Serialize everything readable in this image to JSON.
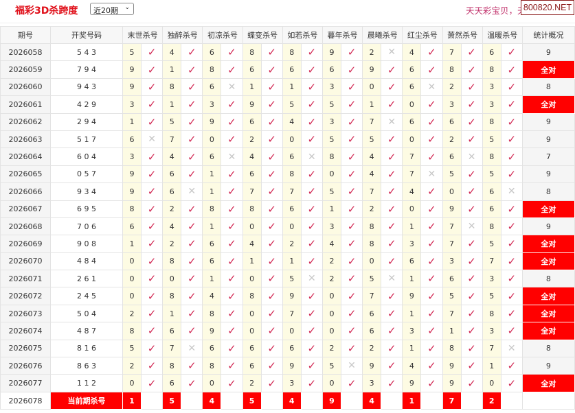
{
  "header": {
    "title": "福彩3D杀跨度",
    "period_select": "近20期",
    "slogan": "天天彩宝贝，天",
    "brand": "800820.NET"
  },
  "columns": {
    "issue": "期号",
    "draw": "开奖号码",
    "experts": [
      "末世杀号",
      "独醉杀号",
      "初凉杀号",
      "蝶变杀号",
      "如若杀号",
      "暮年杀号",
      "晨曦杀号",
      "红尘杀号",
      "萧然杀号",
      "温暖杀号"
    ],
    "stats": "统计概况"
  },
  "colors": {
    "accent": "#ff0000",
    "check": "#d22a55",
    "cross": "#c8c8c8",
    "number_bg": "#fdfbe3"
  },
  "rows": [
    {
      "issue": "2026058",
      "draw": "5 4 3",
      "kills": [
        5,
        4,
        6,
        8,
        8,
        9,
        2,
        4,
        7,
        6
      ],
      "hits": [
        1,
        1,
        1,
        1,
        1,
        1,
        0,
        1,
        1,
        1
      ],
      "stat": "9"
    },
    {
      "issue": "2026059",
      "draw": "7 9 4",
      "kills": [
        9,
        1,
        8,
        6,
        6,
        6,
        9,
        6,
        8,
        8
      ],
      "hits": [
        1,
        1,
        1,
        1,
        1,
        1,
        1,
        1,
        1,
        1
      ],
      "stat": "全对"
    },
    {
      "issue": "2026060",
      "draw": "9 4 3",
      "kills": [
        9,
        8,
        6,
        1,
        1,
        3,
        0,
        6,
        2,
        3
      ],
      "hits": [
        1,
        1,
        0,
        1,
        1,
        1,
        1,
        0,
        1,
        1
      ],
      "stat": "8"
    },
    {
      "issue": "2026061",
      "draw": "4 2 9",
      "kills": [
        3,
        1,
        3,
        9,
        5,
        5,
        1,
        0,
        3,
        3
      ],
      "hits": [
        1,
        1,
        1,
        1,
        1,
        1,
        1,
        1,
        1,
        1
      ],
      "stat": "全对"
    },
    {
      "issue": "2026062",
      "draw": "2 9 4",
      "kills": [
        1,
        5,
        9,
        6,
        4,
        3,
        7,
        6,
        6,
        8
      ],
      "hits": [
        1,
        1,
        1,
        1,
        1,
        1,
        0,
        1,
        1,
        1
      ],
      "stat": "9"
    },
    {
      "issue": "2026063",
      "draw": "5 1 7",
      "kills": [
        6,
        7,
        0,
        2,
        0,
        5,
        5,
        0,
        2,
        5
      ],
      "hits": [
        0,
        1,
        1,
        1,
        1,
        1,
        1,
        1,
        1,
        1
      ],
      "stat": "9"
    },
    {
      "issue": "2026064",
      "draw": "6 0 4",
      "kills": [
        3,
        4,
        6,
        4,
        6,
        8,
        4,
        7,
        6,
        8
      ],
      "hits": [
        1,
        1,
        0,
        1,
        0,
        1,
        1,
        1,
        0,
        1
      ],
      "stat": "7"
    },
    {
      "issue": "2026065",
      "draw": "0 5 7",
      "kills": [
        9,
        6,
        1,
        6,
        8,
        0,
        4,
        7,
        5,
        5
      ],
      "hits": [
        1,
        1,
        1,
        1,
        1,
        1,
        1,
        0,
        1,
        1
      ],
      "stat": "9"
    },
    {
      "issue": "2026066",
      "draw": "9 3 4",
      "kills": [
        9,
        6,
        1,
        7,
        7,
        5,
        7,
        4,
        0,
        6
      ],
      "hits": [
        1,
        0,
        1,
        1,
        1,
        1,
        1,
        1,
        1,
        0
      ],
      "stat": "8"
    },
    {
      "issue": "2026067",
      "draw": "6 9 5",
      "kills": [
        8,
        2,
        8,
        8,
        6,
        1,
        2,
        0,
        9,
        6
      ],
      "hits": [
        1,
        1,
        1,
        1,
        1,
        1,
        1,
        1,
        1,
        1
      ],
      "stat": "全对"
    },
    {
      "issue": "2026068",
      "draw": "7 0 6",
      "kills": [
        6,
        4,
        1,
        0,
        0,
        3,
        8,
        1,
        7,
        8
      ],
      "hits": [
        1,
        1,
        1,
        1,
        1,
        1,
        1,
        1,
        0,
        1
      ],
      "stat": "9"
    },
    {
      "issue": "2026069",
      "draw": "9 0 8",
      "kills": [
        1,
        2,
        6,
        4,
        2,
        4,
        8,
        3,
        7,
        5
      ],
      "hits": [
        1,
        1,
        1,
        1,
        1,
        1,
        1,
        1,
        1,
        1
      ],
      "stat": "全对"
    },
    {
      "issue": "2026070",
      "draw": "4 8 4",
      "kills": [
        0,
        8,
        6,
        1,
        1,
        2,
        0,
        6,
        3,
        7
      ],
      "hits": [
        1,
        1,
        1,
        1,
        1,
        1,
        1,
        1,
        1,
        1
      ],
      "stat": "全对"
    },
    {
      "issue": "2026071",
      "draw": "2 6 1",
      "kills": [
        0,
        0,
        1,
        0,
        5,
        2,
        5,
        1,
        6,
        3
      ],
      "hits": [
        1,
        1,
        1,
        1,
        0,
        1,
        0,
        1,
        1,
        1
      ],
      "stat": "8"
    },
    {
      "issue": "2026072",
      "draw": "2 4 5",
      "kills": [
        0,
        8,
        4,
        8,
        9,
        0,
        7,
        9,
        5,
        5
      ],
      "hits": [
        1,
        1,
        1,
        1,
        1,
        1,
        1,
        1,
        1,
        1
      ],
      "stat": "全对"
    },
    {
      "issue": "2026073",
      "draw": "5 0 4",
      "kills": [
        2,
        1,
        8,
        0,
        7,
        0,
        6,
        1,
        7,
        8
      ],
      "hits": [
        1,
        1,
        1,
        1,
        1,
        1,
        1,
        1,
        1,
        1
      ],
      "stat": "全对"
    },
    {
      "issue": "2026074",
      "draw": "4 8 7",
      "kills": [
        8,
        6,
        9,
        0,
        0,
        0,
        6,
        3,
        1,
        3
      ],
      "hits": [
        1,
        1,
        1,
        1,
        1,
        1,
        1,
        1,
        1,
        1
      ],
      "stat": "全对"
    },
    {
      "issue": "2026075",
      "draw": "8 1 6",
      "kills": [
        5,
        7,
        6,
        6,
        6,
        2,
        2,
        1,
        8,
        7
      ],
      "hits": [
        1,
        0,
        1,
        1,
        1,
        1,
        1,
        1,
        1,
        0
      ],
      "stat": "8"
    },
    {
      "issue": "2026076",
      "draw": "8 6 3",
      "kills": [
        2,
        8,
        8,
        6,
        9,
        5,
        9,
        4,
        9,
        1
      ],
      "hits": [
        1,
        1,
        1,
        1,
        1,
        0,
        1,
        1,
        1,
        1
      ],
      "stat": "9"
    },
    {
      "issue": "2026077",
      "draw": "1 1 2",
      "kills": [
        0,
        6,
        0,
        2,
        3,
        0,
        3,
        9,
        9,
        0
      ],
      "hits": [
        1,
        1,
        1,
        1,
        1,
        1,
        1,
        1,
        1,
        1
      ],
      "stat": "全对"
    }
  ],
  "current": {
    "issue": "2026078",
    "label": "当前期杀号",
    "kills": [
      1,
      5,
      4,
      5,
      4,
      9,
      4,
      1,
      7,
      2
    ]
  },
  "marks": {
    "hit": "✓",
    "miss": "✕"
  }
}
